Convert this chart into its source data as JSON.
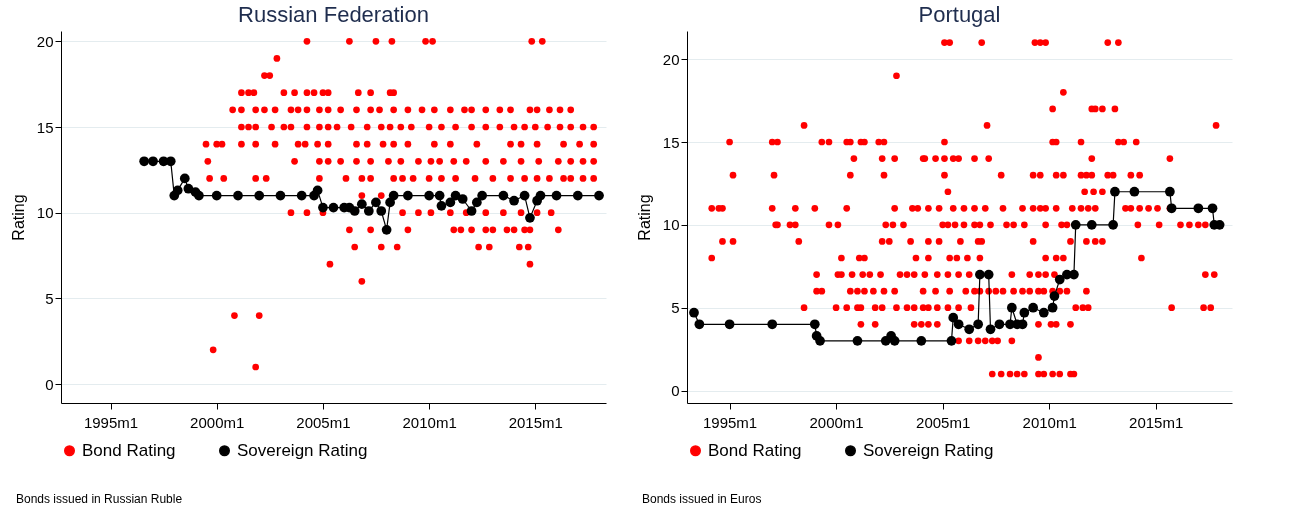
{
  "chart_data": [
    {
      "type": "scatter",
      "title": "Russian Federation",
      "ylabel": "Rating",
      "xlim": [
        "1992-09",
        "2018-05"
      ],
      "ylim": [
        -1.1,
        20.6
      ],
      "yticks": [
        0,
        5,
        10,
        15,
        20
      ],
      "xticks": [
        {
          "value": "1995-01",
          "label": "1995m1"
        },
        {
          "value": "2000-01",
          "label": "2000m1"
        },
        {
          "value": "2005-01",
          "label": "2005m1"
        },
        {
          "value": "2010-01",
          "label": "2010m1"
        },
        {
          "value": "2015-01",
          "label": "2015m1"
        }
      ],
      "grid": "y",
      "legend": "bottom",
      "annotations": [
        "Bonds issued in Russian Ruble"
      ],
      "series": [
        {
          "name": "Bond Rating",
          "type": "scatter",
          "marker": "circle",
          "color": "#ff0000",
          "x": [
            "2004-04",
            "2006-04",
            "2007-07",
            "2008-04",
            "2009-11",
            "2010-03",
            "2014-11",
            "2015-05",
            "2002-11",
            "2002-04",
            "2002-07",
            "2001-03",
            "2001-07",
            "2001-10",
            "2003-03",
            "2003-09",
            "2004-04",
            "2004-08",
            "2005-01",
            "2005-04",
            "2006-09",
            "2007-04",
            "2008-03",
            "2008-05",
            "2000-10",
            "2001-03",
            "2001-11",
            "2002-04",
            "2002-10",
            "2003-07",
            "2003-11",
            "2004-04",
            "2004-11",
            "2005-04",
            "2005-11",
            "2006-08",
            "2007-04",
            "2007-09",
            "2008-05",
            "2009-01",
            "2009-09",
            "2010-04",
            "2011-01",
            "2011-09",
            "2012-01",
            "2012-09",
            "2013-05",
            "2013-11",
            "2014-10",
            "2015-02",
            "2015-09",
            "2016-03",
            "2016-09",
            "2001-03",
            "2001-07",
            "2001-11",
            "2002-08",
            "2003-03",
            "2003-07",
            "2004-04",
            "2004-11",
            "2005-04",
            "2005-09",
            "2006-05",
            "2007-02",
            "2007-10",
            "2008-03",
            "2008-09",
            "2009-03",
            "2010-01",
            "2010-08",
            "2011-04",
            "2012-01",
            "2012-09",
            "2013-05",
            "2014-01",
            "2014-07",
            "2015-01",
            "2015-08",
            "2016-03",
            "2016-09",
            "2017-04",
            "2017-10",
            "1999-07",
            "2000-01",
            "2000-04",
            "2001-03",
            "2001-11",
            "2002-10",
            "2003-11",
            "2004-03",
            "2004-10",
            "2005-04",
            "2006-08",
            "2007-02",
            "2007-11",
            "2008-05",
            "2009-01",
            "2010-04",
            "2011-01",
            "2012-04",
            "2013-11",
            "2014-05",
            "2015-02",
            "2016-05",
            "2017-02",
            "2017-10",
            "1999-08",
            "2003-09",
            "2004-11",
            "2005-04",
            "2005-11",
            "2006-08",
            "2007-04",
            "2008-02",
            "2008-09",
            "2009-07",
            "2010-02",
            "2010-07",
            "2011-03",
            "2011-10",
            "2012-09",
            "2013-07",
            "2014-05",
            "2015-03",
            "2016-02",
            "2016-09",
            "2017-04",
            "2017-10",
            "1999-09",
            "2000-05",
            "2001-11",
            "2002-05",
            "2004-11",
            "2006-02",
            "2006-11",
            "2007-04",
            "2008-05",
            "2008-10",
            "2009-04",
            "2010-01",
            "2010-08",
            "2011-04",
            "2012-03",
            "2013-01",
            "2013-11",
            "2014-07",
            "2015-02",
            "2015-09",
            "2016-05",
            "2016-09",
            "2017-04",
            "2017-10",
            "2006-11",
            "2007-10",
            "2003-07",
            "2004-04",
            "2005-01",
            "2008-10",
            "2009-07",
            "2010-02",
            "2011-01",
            "2011-10",
            "2012-09",
            "2013-07",
            "2014-05",
            "2015-02",
            "2015-10",
            "2006-04",
            "2007-04",
            "2009-01",
            "2011-03",
            "2011-07",
            "2012-01",
            "2012-09",
            "2013-01",
            "2013-09",
            "2014-01",
            "2014-07",
            "2014-10",
            "2016-02",
            "2006-07",
            "2007-10",
            "2008-07",
            "2012-05",
            "2012-11",
            "2014-04",
            "2014-09",
            "2005-05",
            "2014-10",
            "2006-11",
            "2000-11",
            "2002-01",
            "1999-11",
            "2001-11"
          ],
          "values": [
            20,
            20,
            20,
            20,
            20,
            20,
            20,
            20,
            19,
            18,
            18,
            17,
            17,
            17,
            17,
            17,
            17,
            17,
            17,
            17,
            17,
            17,
            17,
            17,
            16,
            16,
            16,
            16,
            16,
            16,
            16,
            16,
            16,
            16,
            16,
            16,
            16,
            16,
            16,
            16,
            16,
            16,
            16,
            16,
            16,
            16,
            16,
            16,
            16,
            16,
            16,
            16,
            16,
            15,
            15,
            15,
            15,
            15,
            15,
            15,
            15,
            15,
            15,
            15,
            15,
            15,
            15,
            15,
            15,
            15,
            15,
            15,
            15,
            15,
            15,
            15,
            15,
            15,
            15,
            15,
            15,
            15,
            15,
            14,
            14,
            14,
            14,
            14,
            14,
            14,
            14,
            14,
            14,
            14,
            14,
            14,
            14,
            14,
            14,
            14,
            14,
            14,
            14,
            14,
            14,
            14,
            14,
            13,
            13,
            13,
            13,
            13,
            13,
            13,
            13,
            13,
            13,
            13,
            13,
            13,
            13,
            13,
            13,
            13,
            13,
            13,
            13,
            13,
            13,
            12,
            12,
            12,
            12,
            12,
            12,
            12,
            12,
            12,
            12,
            12,
            12,
            12,
            12,
            12,
            12,
            12,
            12,
            12,
            12,
            12,
            12,
            12,
            12,
            11,
            11,
            10,
            10,
            10,
            10,
            10,
            10,
            10,
            10,
            10,
            10,
            10,
            10,
            10,
            9,
            9,
            9,
            9,
            9,
            9,
            9,
            9,
            9,
            9,
            9,
            9,
            9,
            8,
            8,
            8,
            8,
            8,
            8,
            8,
            7,
            7,
            6,
            4,
            4,
            2,
            1
          ]
        },
        {
          "name": "Sovereign Rating",
          "type": "line",
          "marker": "circle",
          "color": "#000000",
          "x": [
            "1996-08",
            "1997-01",
            "1997-07",
            "1997-11",
            "1998-01",
            "1998-03",
            "1998-07",
            "1998-09",
            "1999-01",
            "1999-03",
            "2000-01",
            "2001-01",
            "2002-01",
            "2003-01",
            "2004-01",
            "2004-08",
            "2004-10",
            "2005-01",
            "2005-07",
            "2006-01",
            "2006-04",
            "2006-07",
            "2006-11",
            "2007-03",
            "2007-07",
            "2007-10",
            "2008-01",
            "2008-03",
            "2008-05",
            "2009-01",
            "2010-01",
            "2010-07",
            "2010-08",
            "2011-01",
            "2011-04",
            "2011-08",
            "2012-01",
            "2012-04",
            "2012-07",
            "2013-07",
            "2014-01",
            "2014-07",
            "2014-10",
            "2015-02",
            "2015-04",
            "2016-01",
            "2017-01",
            "2018-01"
          ],
          "values": [
            13,
            13,
            13,
            13,
            11,
            11.3,
            12,
            11.4,
            11.2,
            11,
            11,
            11,
            11,
            11,
            11,
            11,
            11.3,
            10.3,
            10.3,
            10.3,
            10.3,
            10.1,
            10.5,
            10.1,
            10.6,
            10.1,
            9,
            10.6,
            11,
            11,
            11,
            11,
            10.4,
            10.6,
            11,
            10.8,
            10.1,
            10.6,
            11,
            11,
            10.7,
            11,
            9.7,
            10.7,
            11,
            11,
            11,
            11
          ]
        }
      ]
    },
    {
      "type": "scatter",
      "title": "Portugal",
      "ylabel": "Rating",
      "xlim": [
        "1993-01",
        "2018-08"
      ],
      "ylim": [
        -0.75,
        21.7
      ],
      "yticks": [
        0,
        5,
        10,
        15,
        20
      ],
      "xticks": [
        {
          "value": "1995-01",
          "label": "1995m1"
        },
        {
          "value": "2000-01",
          "label": "2000m1"
        },
        {
          "value": "2005-01",
          "label": "2005m1"
        },
        {
          "value": "2010-01",
          "label": "2010m1"
        },
        {
          "value": "2015-01",
          "label": "2015m1"
        }
      ],
      "grid": "y",
      "legend": "bottom",
      "annotations": [
        "Bonds issued in Euros"
      ],
      "series": [
        {
          "name": "Bond Rating",
          "type": "scatter",
          "marker": "circle",
          "color": "#ff0000",
          "x": [
            "2005-02",
            "2005-05",
            "2006-11",
            "2009-05",
            "2009-08",
            "2009-11",
            "2012-10",
            "2013-04",
            "2002-11",
            "2010-09",
            "2010-03",
            "2012-01",
            "2012-03",
            "2012-07",
            "2013-02",
            "1998-07",
            "2007-02",
            "2017-11",
            "1995-01",
            "1997-01",
            "1997-04",
            "1999-05",
            "1999-09",
            "2000-07",
            "2000-09",
            "2001-03",
            "2001-05",
            "2002-01",
            "2002-04",
            "2005-02",
            "2010-03",
            "2010-05",
            "2011-07",
            "2013-04",
            "2013-07",
            "2014-02",
            "2000-11",
            "2002-03",
            "2002-10",
            "2004-02",
            "2004-03",
            "2004-09",
            "2005-02",
            "2005-07",
            "2005-10",
            "2006-07",
            "2007-03",
            "2012-01",
            "2015-09",
            "1995-03",
            "1997-02",
            "2000-09",
            "2002-04",
            "2005-02",
            "2007-10",
            "2009-04",
            "2009-08",
            "2010-05",
            "2010-09",
            "2011-07",
            "2011-10",
            "2012-01",
            "2012-10",
            "2013-01",
            "2013-11",
            "2014-04",
            "2005-04",
            "2011-09",
            "2012-02",
            "2012-07",
            "1994-03",
            "1994-07",
            "1994-09",
            "1997-01",
            "1998-02",
            "1999-01",
            "2000-07",
            "2002-10",
            "2003-08",
            "2003-11",
            "2004-05",
            "2004-11",
            "2005-07",
            "2006-01",
            "2006-07",
            "2007-01",
            "2007-11",
            "2008-10",
            "2009-04",
            "2009-08",
            "2009-11",
            "2010-05",
            "2011-02",
            "2011-07",
            "2011-11",
            "2012-03",
            "2013-08",
            "2013-11",
            "2014-04",
            "2014-09",
            "2015-02",
            "2015-09",
            "1997-03",
            "1997-04",
            "1997-11",
            "1998-02",
            "1999-09",
            "2000-02",
            "2002-05",
            "2002-09",
            "2003-03",
            "2005-01",
            "2005-04",
            "2005-08",
            "2006-01",
            "2006-07",
            "2006-10",
            "2007-04",
            "2008-01",
            "2008-05",
            "2008-11",
            "2009-11",
            "2010-08",
            "2010-11",
            "2014-03",
            "2015-03",
            "2016-03",
            "2016-08",
            "2017-01",
            "2017-05",
            "1994-09",
            "1995-03",
            "1998-04",
            "2002-03",
            "2002-07",
            "2003-07",
            "2004-05",
            "2004-11",
            "2005-11",
            "2006-09",
            "2006-11",
            "2009-04",
            "2011-01",
            "2011-10",
            "2012-03",
            "2012-07",
            "1994-03",
            "2000-04",
            "2001-02",
            "2001-05",
            "2003-10",
            "2004-05",
            "2005-05",
            "2005-09",
            "2006-03",
            "2006-10",
            "2009-11",
            "2010-05",
            "2010-09",
            "2014-05",
            "1999-02",
            "2000-02",
            "2000-04",
            "2000-10",
            "2001-04",
            "2001-08",
            "2002-02",
            "2003-01",
            "2003-05",
            "2003-09",
            "2004-03",
            "2004-10",
            "2005-04",
            "2005-10",
            "2006-04",
            "2008-04",
            "2009-02",
            "2009-07",
            "2009-11",
            "2010-04",
            "2017-05",
            "2017-10",
            "1999-02",
            "1999-05",
            "2000-09",
            "2001-01",
            "2001-05",
            "2001-10",
            "2002-04",
            "2002-10",
            "2004-02",
            "2004-09",
            "2005-05",
            "2006-02",
            "2006-07",
            "2006-10",
            "2007-03",
            "2007-07",
            "2007-11",
            "2008-05",
            "2008-10",
            "2009-02",
            "2009-07",
            "2009-10",
            "2010-03",
            "2010-07",
            "2010-11",
            "2011-10",
            "1998-07",
            "2000-01",
            "2000-07",
            "2001-01",
            "2001-03",
            "2001-11",
            "2002-03",
            "2002-11",
            "2003-05",
            "2003-09",
            "2004-02",
            "2004-05",
            "2004-10",
            "2005-04",
            "2005-10",
            "2006-05",
            "2011-04",
            "2011-08",
            "2011-11",
            "2015-10",
            "2017-04",
            "2017-08",
            "2001-03",
            "2001-11",
            "2003-09",
            "2004-01",
            "2004-05",
            "2004-10",
            "2009-07",
            "2010-02",
            "2010-05",
            "2011-01",
            "2005-10",
            "2006-04",
            "2006-09",
            "2007-01",
            "2007-05",
            "2007-08",
            "2008-04",
            "2009-07",
            "2007-05",
            "2007-10",
            "2008-03",
            "2008-07",
            "2008-11",
            "2009-07",
            "2009-10",
            "2010-03",
            "2010-07",
            "2011-01",
            "2011-03"
          ],
          "values": [
            21,
            21,
            21,
            21,
            21,
            21,
            21,
            21,
            19,
            18,
            17,
            17,
            17,
            17,
            17,
            16,
            16,
            16,
            15,
            15,
            15,
            15,
            15,
            15,
            15,
            15,
            15,
            15,
            15,
            15,
            15,
            15,
            15,
            15,
            15,
            15,
            14,
            14,
            14,
            14,
            14,
            14,
            14,
            14,
            14,
            14,
            14,
            14,
            14,
            13,
            13,
            13,
            13,
            13,
            13,
            13,
            13,
            13,
            13,
            13,
            13,
            13,
            13,
            13,
            13,
            13,
            12,
            12,
            12,
            12,
            11,
            11,
            11,
            11,
            11,
            11,
            11,
            11,
            11,
            11,
            11,
            11,
            11,
            11,
            11,
            11,
            11,
            11,
            11,
            11,
            11,
            11,
            11,
            11,
            11,
            11,
            11,
            11,
            11,
            11,
            11,
            11,
            10,
            10,
            10,
            10,
            10,
            10,
            10,
            10,
            10,
            10,
            10,
            10,
            10,
            10,
            10,
            10,
            10,
            10,
            10,
            10,
            10,
            10,
            10,
            10,
            10,
            10,
            10,
            10,
            9,
            9,
            9,
            9,
            9,
            9,
            9,
            9,
            9,
            9,
            9,
            9,
            9,
            9,
            9,
            9,
            8,
            8,
            8,
            8,
            8,
            8,
            8,
            8,
            8,
            8,
            8,
            8,
            8,
            8,
            7,
            7,
            7,
            7,
            7,
            7,
            7,
            7,
            7,
            7,
            7,
            7,
            7,
            7,
            7,
            7,
            7,
            7,
            7,
            7,
            7,
            7,
            6,
            6,
            6,
            6,
            6,
            6,
            6,
            6,
            6,
            6,
            6,
            6,
            6,
            6,
            6,
            6,
            6,
            6,
            6,
            6,
            6,
            6,
            6,
            6,
            6,
            6,
            5,
            5,
            5,
            5,
            5,
            5,
            5,
            5,
            5,
            5,
            5,
            5,
            5,
            5,
            5,
            5,
            5,
            5,
            5,
            5,
            5,
            5,
            4,
            4,
            4,
            4,
            4,
            4,
            4,
            4,
            4,
            4,
            3,
            3,
            3,
            3,
            3,
            3,
            3,
            2,
            1,
            1,
            1,
            1,
            1,
            1,
            1,
            1,
            1,
            1,
            1
          ]
        },
        {
          "name": "Sovereign Rating",
          "type": "line",
          "marker": "circle",
          "color": "#000000",
          "x": [
            "1993-05",
            "1993-08",
            "1995-01",
            "1997-01",
            "1999-01",
            "1999-02",
            "1999-04",
            "2001-01",
            "2002-05",
            "2002-08",
            "2002-10",
            "2004-01",
            "2005-06",
            "2005-07",
            "2005-10",
            "2006-04",
            "2006-09",
            "2006-10",
            "2007-03",
            "2007-04",
            "2007-09",
            "2008-03",
            "2008-04",
            "2008-07",
            "2008-10",
            "2008-11",
            "2009-04",
            "2009-10",
            "2010-03",
            "2010-04",
            "2010-07",
            "2010-11",
            "2011-03",
            "2011-04",
            "2012-01",
            "2013-01",
            "2013-02",
            "2014-01",
            "2015-09",
            "2015-10",
            "2017-01",
            "2017-09",
            "2017-10",
            "2018-01"
          ],
          "values": [
            4.7,
            4,
            4,
            4,
            4,
            3.3,
            3,
            3,
            3,
            3.3,
            3,
            3,
            3,
            4.4,
            4,
            3.7,
            4,
            7,
            7,
            3.7,
            4,
            4,
            5,
            4,
            4,
            4.7,
            5,
            4.7,
            5,
            5.7,
            6.7,
            7,
            7,
            10,
            10,
            10,
            12,
            12,
            12,
            11,
            11,
            11,
            10,
            10
          ]
        }
      ]
    }
  ]
}
